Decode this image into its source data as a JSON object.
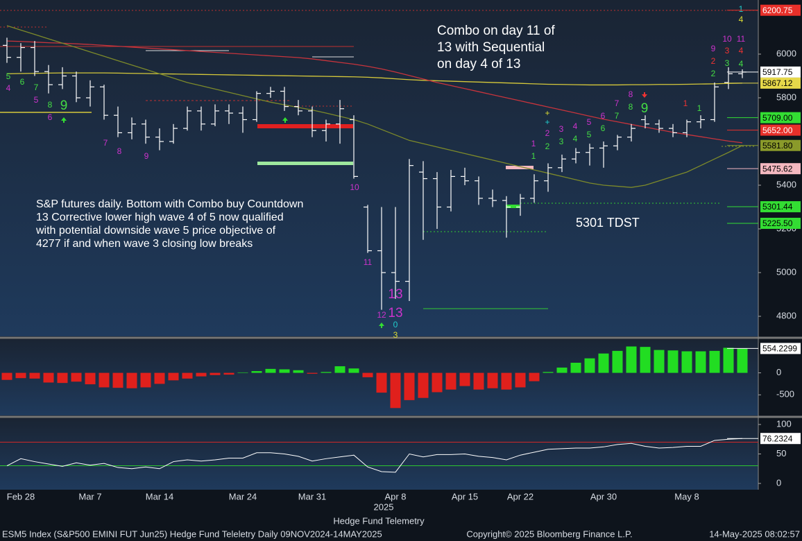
{
  "chart_data": [
    {
      "type": "ohlc",
      "categories": [
        null,
        "Feb 28",
        null,
        null,
        null,
        null,
        "Mar 7",
        null,
        null,
        null,
        null,
        "Mar 14",
        null,
        null,
        null,
        null,
        null,
        "Mar 24",
        null,
        null,
        null,
        null,
        "Mar 31",
        null,
        null,
        null,
        null,
        null,
        "Apr 8",
        null,
        null,
        null,
        null,
        "Apr 15",
        null,
        null,
        null,
        "Apr 22",
        null,
        null,
        null,
        null,
        null,
        "Apr 30",
        null,
        null,
        null,
        null,
        null,
        "May 8",
        null,
        null,
        null,
        null
      ],
      "open": [
        6040,
        5985,
        6030,
        5920,
        5860,
        5900,
        5800,
        5850,
        5720,
        5640,
        5680,
        5620,
        5600,
        5660,
        5740,
        5680,
        5740,
        5730,
        5700,
        5820,
        5830,
        5760,
        5740,
        5650,
        5680,
        5700,
        5300,
        5100,
        5000,
        4960,
        5460,
        5430,
        5300,
        5440,
        5420,
        5340,
        5330,
        5300,
        5340,
        5420,
        5480,
        5520,
        5550,
        5570,
        5580,
        5620,
        5700,
        5680,
        5660,
        5640,
        5690,
        5700,
        5870,
        5910
      ],
      "high": [
        6075,
        6050,
        6060,
        5950,
        5940,
        5920,
        5880,
        5860,
        5760,
        5710,
        5700,
        5660,
        5680,
        5760,
        5760,
        5770,
        5770,
        5760,
        5830,
        5850,
        5850,
        5790,
        5760,
        5700,
        5790,
        5720,
        5310,
        5300,
        5300,
        5520,
        5510,
        5460,
        5470,
        5480,
        5440,
        5380,
        5350,
        5360,
        5450,
        5500,
        5540,
        5570,
        5590,
        5600,
        5630,
        5680,
        5720,
        5700,
        5680,
        5700,
        5720,
        5870,
        5940,
        5930
      ],
      "low": [
        5960,
        5920,
        5900,
        5820,
        5840,
        5780,
        5760,
        5700,
        5620,
        5610,
        5590,
        5560,
        5590,
        5650,
        5650,
        5670,
        5680,
        5640,
        5690,
        5800,
        5740,
        5720,
        5620,
        5600,
        5590,
        5430,
        5090,
        4830,
        4880,
        4870,
        5150,
        5200,
        5280,
        5400,
        5310,
        5300,
        5160,
        5260,
        5320,
        5370,
        5460,
        5500,
        5490,
        5480,
        5560,
        5600,
        5660,
        5640,
        5620,
        5620,
        5660,
        5690,
        5840,
        5890
      ],
      "close": [
        5985,
        6030,
        5920,
        5860,
        5900,
        5800,
        5850,
        5720,
        5640,
        5680,
        5620,
        5600,
        5660,
        5740,
        5680,
        5740,
        5730,
        5700,
        5820,
        5830,
        5760,
        5740,
        5650,
        5680,
        5750,
        5440,
        5100,
        5000,
        4960,
        5490,
        5430,
        5300,
        5440,
        5420,
        5340,
        5330,
        5300,
        5340,
        5420,
        5480,
        5520,
        5550,
        5570,
        5580,
        5620,
        5660,
        5680,
        5660,
        5640,
        5690,
        5700,
        5850,
        5910,
        5917.75
      ],
      "series": [
        {
          "color": "#d6c93a",
          "values": [
            5910,
            5911,
            5912,
            5913,
            5914,
            5914,
            5914,
            5914,
            5913,
            5912,
            5911,
            5910,
            5909,
            5908,
            5907,
            5906,
            5905,
            5904,
            5903,
            5902,
            5901,
            5900,
            5899,
            5898,
            5897,
            5896,
            5894,
            5891,
            5887,
            5883,
            5880,
            5878,
            5876,
            5874,
            5872,
            5870,
            5868,
            5866,
            5864,
            5862,
            5861,
            5860,
            5859,
            5859,
            5859,
            5860,
            5860,
            5861,
            5861,
            5862,
            5863,
            5864,
            5866,
            5867.12
          ]
        },
        {
          "color": "#c8343c",
          "values": [
            6060,
            6058,
            6055,
            6052,
            6050,
            6047,
            6044,
            6040,
            6036,
            6032,
            6028,
            6024,
            6020,
            6016,
            6012,
            6008,
            6004,
            6000,
            5996,
            5992,
            5988,
            5984,
            5978,
            5970,
            5962,
            5954,
            5944,
            5932,
            5918,
            5902,
            5886,
            5870,
            5856,
            5842,
            5828,
            5814,
            5800,
            5786,
            5772,
            5758,
            5744,
            5730,
            5716,
            5702,
            5690,
            5678,
            5666,
            5654,
            5642,
            5632,
            5622,
            5612,
            5602,
            5594
          ]
        },
        {
          "color": "#7d8a2a",
          "values": [
            6130,
            6110,
            6090,
            6070,
            6050,
            6030,
            6010,
            5990,
            5970,
            5950,
            5930,
            5910,
            5890,
            5870,
            5855,
            5840,
            5825,
            5810,
            5795,
            5780,
            5768,
            5756,
            5744,
            5730,
            5715,
            5700,
            5680,
            5655,
            5630,
            5605,
            5590,
            5575,
            5560,
            5545,
            5530,
            5515,
            5500,
            5485,
            5470,
            5455,
            5440,
            5425,
            5410,
            5400,
            5395,
            5390,
            5400,
            5420,
            5440,
            5460,
            5490,
            5520,
            5550,
            5581.8
          ]
        }
      ],
      "bar_color": "#ffffff",
      "ylim": [
        4708,
        6247.6
      ],
      "yticks": [
        4800,
        5000,
        5200,
        5400,
        5800,
        6000
      ],
      "levels": [
        {
          "value": 6200.75,
          "label": "6200.75",
          "color": "#e8302a",
          "text_color": "#ffffff"
        },
        {
          "value": 5917.75,
          "label": "5917.75",
          "color": "#ffffff",
          "text_color": "#000000"
        },
        {
          "value": 5867.12,
          "label": "5867.12",
          "color": "#e6d84a",
          "text_color": "#000000"
        },
        {
          "value": 5709,
          "label": "5709.00",
          "color": "#33dd33",
          "text_color": "#000000"
        },
        {
          "value": 5652,
          "label": "5652.00",
          "color": "#e8302a",
          "text_color": "#ffffff"
        },
        {
          "value": 5581.8,
          "label": "5581.80",
          "color": "#8a9a2a",
          "text_color": "#000000"
        },
        {
          "value": 5475.62,
          "label": "5475.62",
          "color": "#f4b8c0",
          "text_color": "#000000"
        },
        {
          "value": 5301.44,
          "label": "5301.44",
          "color": "#33dd33",
          "text_color": "#000000"
        },
        {
          "value": 5225.5,
          "label": "5225.50",
          "color": "#33dd33",
          "text_color": "#000000"
        }
      ],
      "annotations": {
        "combo": [
          "Combo on day 11 of",
          "13 with Sequential",
          "on day 4 of 13"
        ],
        "note": [
          "S&P futures daily. Bottom with Combo buy Countdown",
          "13 Corrective lower high wave 4 of 5 now qualified",
          "with potential downside wave 5 price objective of",
          "4277 if and when wave 3 closing low breaks"
        ],
        "tdst": "5301 TDST"
      },
      "counts": [
        {
          "text": "5",
          "color": "#44dd44"
        },
        {
          "text": "4",
          "color": "#cc33cc"
        },
        {
          "text": "6",
          "color": "#44dd44"
        },
        {
          "text": "7",
          "color": "#44dd44"
        },
        {
          "text": "5",
          "color": "#cc33cc"
        },
        {
          "text": "8",
          "color": "#44dd44"
        },
        {
          "text": "9",
          "color": "#44dd44"
        },
        {
          "text": "6",
          "color": "#cc33cc"
        },
        {
          "text": "7",
          "color": "#cc33cc"
        },
        {
          "text": "8",
          "color": "#cc33cc"
        },
        {
          "text": "9",
          "color": "#cc33cc"
        },
        {
          "text": "10",
          "color": "#cc33cc"
        },
        {
          "text": "11",
          "color": "#cc33cc"
        },
        {
          "text": "12",
          "color": "#cc33cc"
        },
        {
          "text": "13",
          "color": "#cc33cc"
        },
        {
          "text": "13",
          "color": "#cc33cc"
        },
        {
          "text": "0",
          "color": "#22cccc"
        },
        {
          "text": "3",
          "color": "#dddd33"
        },
        {
          "text": "1",
          "color": "#cc33cc"
        },
        {
          "text": "1",
          "color": "#44dd44"
        },
        {
          "text": "+",
          "color": "#dddd33"
        },
        {
          "text": "+",
          "color": "#22cccc"
        },
        {
          "text": "2",
          "color": "#cc33cc"
        },
        {
          "text": "2",
          "color": "#44dd44"
        },
        {
          "text": "3",
          "color": "#cc33cc"
        },
        {
          "text": "3",
          "color": "#44dd44"
        },
        {
          "text": "4",
          "color": "#cc33cc"
        },
        {
          "text": "4",
          "color": "#44dd44"
        },
        {
          "text": "5",
          "color": "#cc33cc"
        },
        {
          "text": "5",
          "color": "#44dd44"
        },
        {
          "text": "6",
          "color": "#cc33cc"
        },
        {
          "text": "6",
          "color": "#44dd44"
        },
        {
          "text": "7",
          "color": "#cc33cc"
        },
        {
          "text": "7",
          "color": "#44dd44"
        },
        {
          "text": "8",
          "color": "#cc33cc"
        },
        {
          "text": "8",
          "color": "#44dd44"
        },
        {
          "text": "9",
          "color": "#44dd44"
        },
        {
          "text": "1",
          "color": "#ee3333"
        },
        {
          "text": "1",
          "color": "#44dd44"
        },
        {
          "text": "9",
          "color": "#cc33cc"
        },
        {
          "text": "2",
          "color": "#ee3333"
        },
        {
          "text": "2",
          "color": "#44dd44"
        },
        {
          "text": "10",
          "color": "#cc33cc"
        },
        {
          "text": "3",
          "color": "#ee3333"
        },
        {
          "text": "3",
          "color": "#44dd44"
        },
        {
          "text": "11",
          "color": "#cc33cc"
        },
        {
          "text": "4",
          "color": "#ee3333"
        },
        {
          "text": "4",
          "color": "#44dd44"
        },
        {
          "text": "1",
          "color": "#22cccc"
        },
        {
          "text": "4",
          "color": "#dddd33"
        }
      ],
      "year": "2025",
      "subtitle": "Hedge Fund Telemetry",
      "footer": {
        "left": "ESM5 Index (S&P500 EMINI FUT  Jun25) Hedge Fund Teleletry  Daily 09NOV2024-14MAY2025",
        "center": "Copyright© 2025 Bloomberg Finance L.P.",
        "right": "14-May-2025 08:02:57"
      }
    },
    {
      "type": "bar",
      "values": [
        -160,
        -120,
        -130,
        -220,
        -230,
        -200,
        -260,
        -330,
        -340,
        -350,
        -330,
        -250,
        -170,
        -130,
        -80,
        -50,
        -40,
        10,
        40,
        90,
        80,
        60,
        -20,
        20,
        150,
        100,
        -100,
        -450,
        -800,
        -620,
        -570,
        -440,
        -380,
        -300,
        -380,
        -350,
        -380,
        -330,
        -190,
        20,
        120,
        230,
        330,
        440,
        500,
        600,
        590,
        520,
        510,
        490,
        490,
        500,
        570,
        554.2299
      ],
      "positive_color": "#22dd22",
      "negative_color": "#e0201c",
      "ylim": [
        -953,
        766
      ],
      "yticks": [
        -500,
        0
      ],
      "levels": [
        {
          "value": 554.2299,
          "label": "554.2299",
          "color": "#ffffff",
          "text_color": "#000000"
        }
      ]
    },
    {
      "type": "line",
      "values": [
        30,
        42,
        37,
        33,
        29,
        35,
        31,
        34,
        27,
        25,
        28,
        25,
        37,
        40,
        38,
        40,
        43,
        43,
        52,
        52,
        50,
        46,
        38,
        42,
        45,
        48,
        28,
        20,
        19,
        50,
        45,
        49,
        49,
        50,
        46,
        44,
        40,
        48,
        53,
        58,
        59,
        60,
        60,
        62,
        66,
        68,
        63,
        60,
        61,
        63,
        63,
        73,
        75,
        76.2324
      ],
      "color": "#ffffff",
      "ylim": [
        -9.4,
        110.6
      ],
      "yticks": [
        0,
        50,
        100
      ],
      "reference_lines": [
        {
          "value": 70,
          "color": "#d02828"
        },
        {
          "value": 30,
          "color": "#2ec82e"
        }
      ],
      "levels": [
        {
          "value": 76.2324,
          "label": "76.2324",
          "color": "#ffffff",
          "text_color": "#000000"
        }
      ]
    }
  ]
}
